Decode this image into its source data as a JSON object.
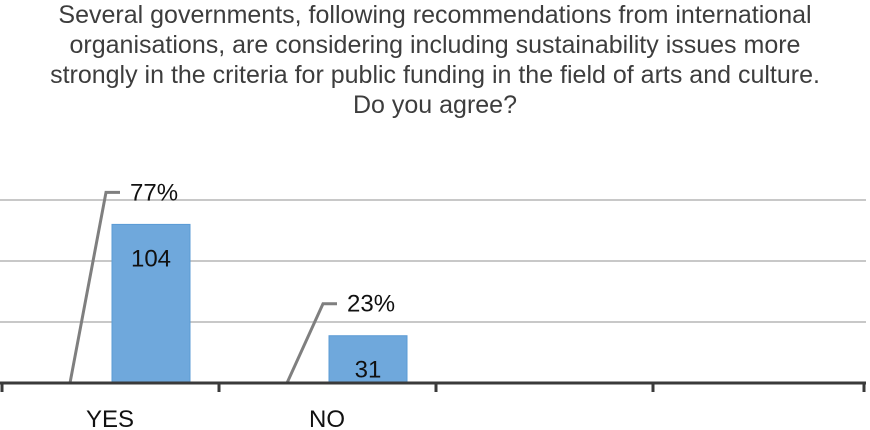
{
  "chart_data": {
    "type": "bar",
    "title": "Several governments, following recommendations from international organisations, are considering including sustainability issues more strongly in the criteria for public funding in the field of arts and culture. Do you agree?",
    "categories": [
      "YES",
      "NO"
    ],
    "series": [
      {
        "values": [
          104,
          31
        ],
        "percent_labels": [
          "77%",
          "23%"
        ]
      }
    ],
    "ylim": [
      0,
      120
    ],
    "grid": true,
    "colors": {
      "bar": "#6fa8dc",
      "bar_edge": "#5b9bd5",
      "grid": "#c8c8c8",
      "axis": "#3a3a3a",
      "leader": "#7f7f7f",
      "text": "#111111"
    }
  }
}
